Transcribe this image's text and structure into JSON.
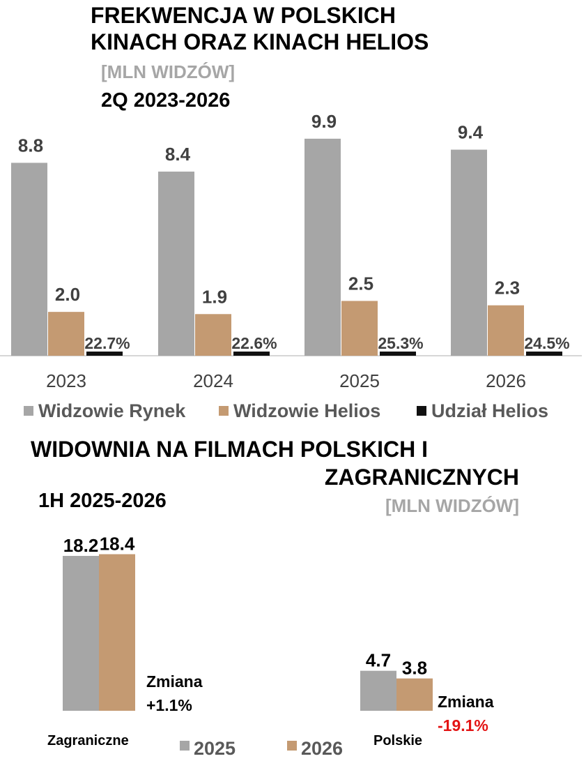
{
  "colors": {
    "market": "#a6a6a6",
    "helios": "#c49a72",
    "share": "#111111",
    "negative": "#e31414",
    "subtitle_gray": "#a6a6a6"
  },
  "chart_data": [
    {
      "type": "bar",
      "title": [
        "FREKWENCJA W POLSKICH",
        "KINACH ORAZ KINACH HELIOS"
      ],
      "unit": "[MLN WIDZÓW]",
      "subtitle": "2Q 2023-2026",
      "categories": [
        "2023",
        "2024",
        "2025",
        "2026"
      ],
      "ylim": [
        0,
        10.5
      ],
      "legend_position": "bottom",
      "series": [
        {
          "name": "Widzowie Rynek",
          "values": [
            8.8,
            8.4,
            9.9,
            9.4
          ],
          "labels": [
            "8.8",
            "8.4",
            "9.9",
            "9.4"
          ]
        },
        {
          "name": "Widzowie Helios",
          "values": [
            2.0,
            1.9,
            2.5,
            2.3
          ],
          "labels": [
            "2.0",
            "1.9",
            "2.5",
            "2.3"
          ]
        },
        {
          "name": "Udział Helios",
          "values": [
            22.7,
            22.6,
            25.3,
            24.5
          ],
          "labels": [
            "22.7%",
            "22.6%",
            "25.3%",
            "24.5%"
          ]
        }
      ]
    },
    {
      "type": "bar",
      "title": [
        "WIDOWNIA NA FILMACH POLSKICH I",
        "ZAGRANICZNYCH"
      ],
      "unit": "[MLN WIDZÓW]",
      "subtitle": "1H 2025-2026",
      "categories": [
        "Zagraniczne",
        "Polskie"
      ],
      "ylim": [
        0,
        20
      ],
      "legend_position": "bottom",
      "series": [
        {
          "name": "2025",
          "values": [
            18.2,
            4.7
          ],
          "labels": [
            "18.2",
            "4.7"
          ]
        },
        {
          "name": "2026",
          "values": [
            18.4,
            3.8
          ],
          "labels": [
            "18.4",
            "3.8"
          ]
        }
      ],
      "change_label": "Zmiana",
      "changes": [
        "+1.1%",
        "-19.1%"
      ]
    }
  ]
}
